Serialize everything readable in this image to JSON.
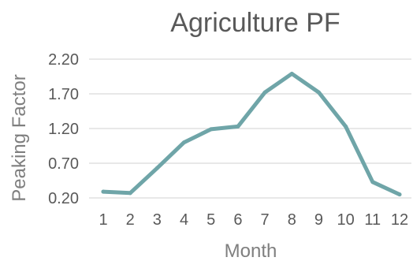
{
  "chart_data": {
    "type": "line",
    "title": "Agriculture PF",
    "xlabel": "Month",
    "ylabel": "Peaking Factor",
    "x": [
      1,
      2,
      3,
      4,
      5,
      6,
      7,
      8,
      9,
      10,
      11,
      12
    ],
    "x_tick_labels": [
      "1",
      "2",
      "3",
      "4",
      "5",
      "6",
      "7",
      "8",
      "9",
      "10",
      "11",
      "12"
    ],
    "y_ticks": [
      "0.20",
      "0.70",
      "1.20",
      "1.70",
      "2.20"
    ],
    "ylim": [
      0.2,
      2.2
    ],
    "grid": true,
    "legend": "none",
    "series": [
      {
        "values": [
          0.29,
          0.27,
          0.63,
          1.0,
          1.19,
          1.23,
          1.72,
          1.99,
          1.72,
          1.23,
          0.43,
          0.25
        ],
        "color": "#6fa5a8"
      }
    ]
  }
}
